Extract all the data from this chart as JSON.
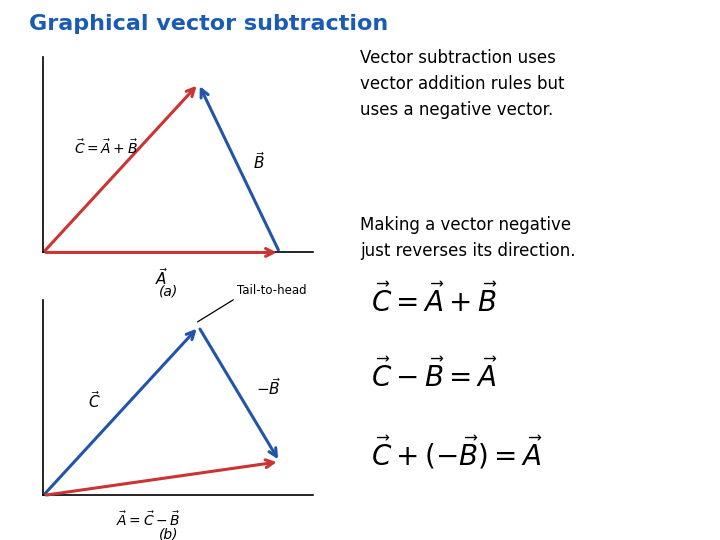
{
  "title": "Graphical vector subtraction",
  "title_color": "#1a5cb5",
  "title_fontsize": 16,
  "bg_color": "#ffffff",
  "text1": "Vector subtraction uses\nvector addition rules but\nuses a negative vector.",
  "text2": "Making a vector negative\njust reverses its direction.",
  "diagram_a_label": "(a)",
  "diagram_b_label": "(b)",
  "fig_a": {
    "color_A": "#cc3333",
    "color_B": "#2255aa",
    "color_C": "#cc3333",
    "label_C": "$\\vec{C} = \\vec{A} + \\vec{B}$",
    "label_A": "$\\vec{A}$",
    "label_B": "$\\vec{B}$"
  },
  "fig_b": {
    "color_C": "#2255aa",
    "color_negB": "#2255aa",
    "color_A": "#cc3333",
    "label_C": "$\\vec{C}$",
    "label_negB": "$-\\vec{B}$",
    "label_A_eq": "$\\vec{A} = \\vec{C} - \\vec{B}$",
    "tail_to_head_label": "Tail-to-head"
  },
  "eq1": "$\\vec{C} = \\vec{A} + \\vec{B}$",
  "eq2": "$\\vec{C} - \\vec{B} = \\vec{A}$",
  "eq3": "$\\vec{C} + (-\\vec{B}) = \\vec{A}$",
  "eq_fontsize": 20
}
